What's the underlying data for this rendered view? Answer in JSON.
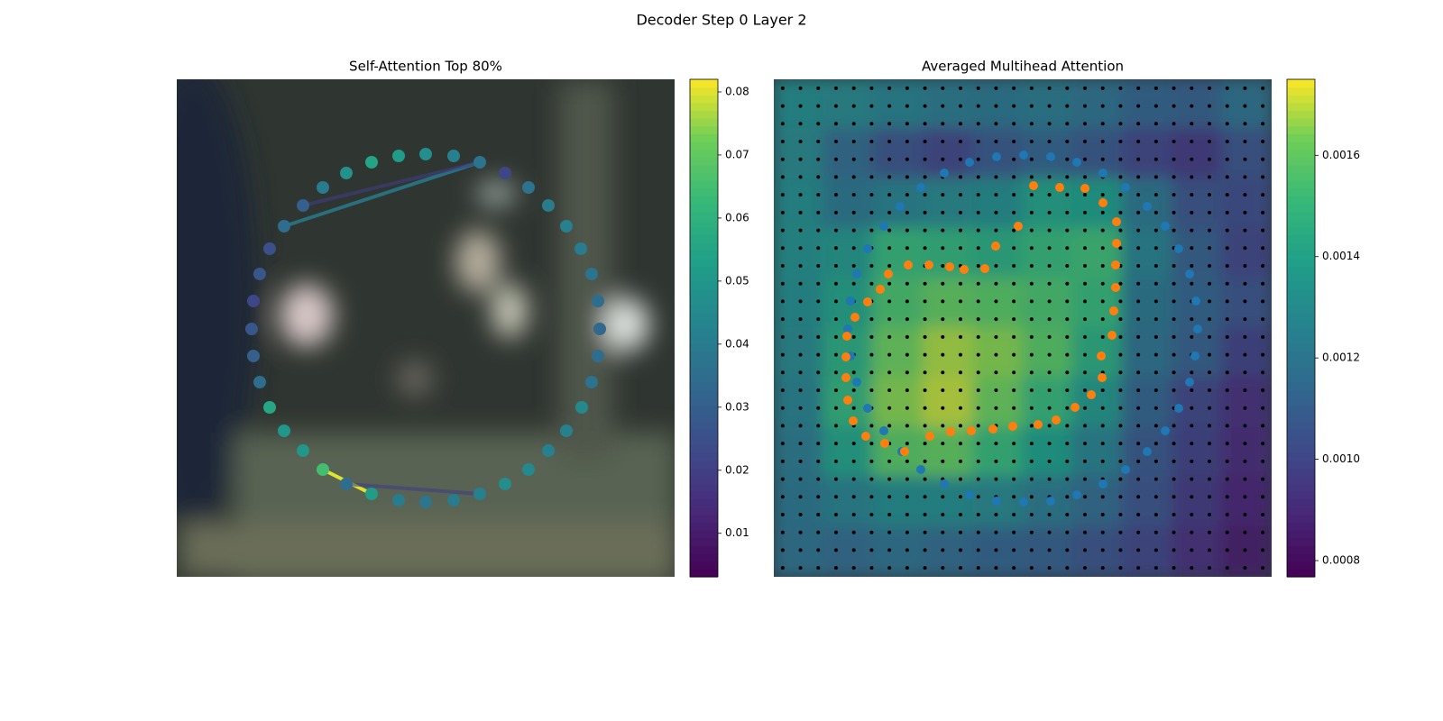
{
  "title": "Decoder Step 0 Layer 2",
  "chart_data": [
    {
      "type": "scatter",
      "title": "Self-Attention Top 80%",
      "colormap": "viridis",
      "xlim": [
        0,
        552
      ],
      "ylim": [
        552,
        0
      ],
      "x": [
        336,
        364,
        390,
        412,
        432,
        448,
        460,
        467,
        469,
        467,
        460,
        449,
        432,
        412,
        390,
        364,
        336,
        307,
        276,
        246,
        216,
        188,
        162,
        140,
        119,
        103,
        92,
        85,
        83,
        85,
        92,
        103,
        119,
        140,
        162,
        188,
        216,
        246,
        276,
        307
      ],
      "y": [
        92,
        104,
        120,
        140,
        163,
        188,
        216,
        246,
        277,
        307,
        336,
        364,
        390,
        412,
        433,
        449,
        460,
        467,
        469,
        467,
        460,
        449,
        433,
        412,
        390,
        364,
        336,
        307,
        277,
        246,
        216,
        188,
        163,
        140,
        120,
        104,
        92,
        85,
        83,
        85
      ],
      "values": [
        0.037,
        0.022,
        0.037,
        0.04,
        0.042,
        0.04,
        0.037,
        0.035,
        0.033,
        0.035,
        0.037,
        0.045,
        0.042,
        0.042,
        0.045,
        0.047,
        0.042,
        0.04,
        0.038,
        0.04,
        0.052,
        0.035,
        0.065,
        0.05,
        0.05,
        0.056,
        0.035,
        0.03,
        0.027,
        0.022,
        0.027,
        0.025,
        0.035,
        0.03,
        0.04,
        0.048,
        0.055,
        0.052,
        0.047,
        0.042
      ],
      "links": [
        {
          "from": 0,
          "to": 32,
          "value": 0.04
        },
        {
          "from": 22,
          "to": 20,
          "value": 0.08
        },
        {
          "from": 33,
          "to": 0,
          "value": 0.02
        },
        {
          "from": 21,
          "to": 16,
          "value": 0.02
        }
      ],
      "clim": [
        0.0031,
        0.082
      ],
      "cticks": [
        0.01,
        0.02,
        0.03,
        0.04,
        0.05,
        0.06,
        0.07,
        0.08
      ]
    },
    {
      "type": "heatmap-scatter",
      "title": "Averaged Multihead Attention",
      "colormap": "viridis",
      "xlim": [
        0,
        552
      ],
      "ylim": [
        552,
        0
      ],
      "heatmap": [
        [
          0.0013,
          0.00128,
          0.00125,
          0.00122,
          0.0012,
          0.00122,
          0.00118,
          0.00112,
          0.0011,
          0.00118
        ],
        [
          0.00128,
          0.00115,
          0.00105,
          0.001,
          0.00108,
          0.00112,
          0.00108,
          0.001,
          0.00095,
          0.00105
        ],
        [
          0.0013,
          0.0012,
          0.00125,
          0.00128,
          0.0013,
          0.0014,
          0.00138,
          0.0012,
          0.00105,
          0.00102
        ],
        [
          0.00132,
          0.00135,
          0.0015,
          0.00148,
          0.00145,
          0.0015,
          0.00152,
          0.00125,
          0.0011,
          0.001
        ],
        [
          0.0013,
          0.0014,
          0.00155,
          0.0016,
          0.00158,
          0.00155,
          0.0015,
          0.0012,
          0.00112,
          0.00105
        ],
        [
          0.00128,
          0.00145,
          0.00162,
          0.00168,
          0.00165,
          0.00158,
          0.00145,
          0.00118,
          0.0011,
          0.00098
        ],
        [
          0.00125,
          0.00148,
          0.00165,
          0.0017,
          0.00162,
          0.0015,
          0.00135,
          0.00112,
          0.001,
          0.00092
        ],
        [
          0.00122,
          0.0014,
          0.00158,
          0.0016,
          0.0015,
          0.00138,
          0.00125,
          0.00108,
          0.00098,
          0.0009
        ],
        [
          0.0012,
          0.00125,
          0.0013,
          0.0013,
          0.00128,
          0.00122,
          0.00115,
          0.00105,
          0.00095,
          0.00088
        ],
        [
          0.00118,
          0.00115,
          0.00118,
          0.00115,
          0.00112,
          0.0011,
          0.00105,
          0.001,
          0.00092,
          0.00085
        ]
      ],
      "series": [
        {
          "color": "#1f77b4",
          "x": [
            247,
            277,
            307,
            336,
            365,
            390,
            414,
            434,
            449,
            461,
            468,
            470,
            467,
            461,
            449,
            434,
            414,
            390,
            365,
            336,
            307,
            277,
            247,
            217,
            189,
            163,
            142,
            122,
            104,
            92,
            85,
            82,
            85,
            92,
            104,
            122,
            140,
            163,
            189,
            217
          ],
          "y": [
            86,
            84,
            86,
            92,
            104,
            120,
            141,
            163,
            188,
            216,
            246,
            277,
            307,
            336,
            365,
            390,
            413,
            433,
            449,
            461,
            468,
            469,
            468,
            461,
            449,
            433,
            413,
            390,
            365,
            336,
            307,
            277,
            246,
            216,
            188,
            163,
            141,
            120,
            104,
            92
          ]
        },
        {
          "color": "#ff7f0e",
          "x": [
            288,
            317,
            345,
            365,
            380,
            380,
            379,
            379,
            377,
            375,
            363,
            364,
            352,
            334,
            313,
            293,
            265,
            243,
            219,
            196,
            173,
            145,
            123,
            102,
            88,
            82,
            80,
            80,
            81,
            90,
            104,
            118,
            127,
            149,
            172,
            195,
            211,
            234,
            246,
            271
          ],
          "y": [
            118,
            120,
            121,
            137,
            158,
            182,
            206,
            231,
            257,
            284,
            307,
            331,
            350,
            364,
            378,
            383,
            385,
            388,
            390,
            391,
            396,
            413,
            404,
            396,
            379,
            356,
            331,
            308,
            285,
            264,
            247,
            233,
            216,
            206,
            206,
            208,
            211,
            210,
            185,
            163
          ]
        }
      ],
      "clim": [
        0.000768,
        0.00175
      ],
      "cticks": [
        0.0008,
        {
          "value": 0.001,
          "label": "0.0010"
        },
        0.0012,
        0.0014,
        0.0016
      ]
    }
  ]
}
